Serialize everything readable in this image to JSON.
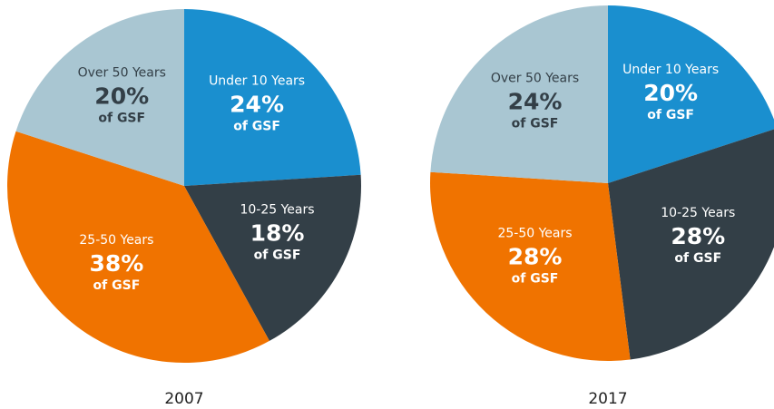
{
  "chart_data": [
    {
      "type": "pie",
      "title": "2007",
      "unit_label": "of GSF",
      "categories": [
        "Under 10 Years",
        "10-25 Years",
        "25-50 Years",
        "Over 50 Years"
      ],
      "values": [
        24,
        18,
        38,
        20
      ],
      "value_labels": [
        "24%",
        "18%",
        "38%",
        "20%"
      ],
      "colors": [
        "#1a8fcf",
        "#333f47",
        "#f07300",
        "#a9c6d2"
      ]
    },
    {
      "type": "pie",
      "title": "2017",
      "unit_label": "of GSF",
      "categories": [
        "Under 10 Years",
        "10-25 Years",
        "25-50 Years",
        "Over 50 Years"
      ],
      "values": [
        20,
        28,
        28,
        24
      ],
      "value_labels": [
        "20%",
        "28%",
        "28%",
        "24%"
      ],
      "colors": [
        "#1a8fcf",
        "#333f47",
        "#f07300",
        "#a9c6d2"
      ]
    }
  ]
}
